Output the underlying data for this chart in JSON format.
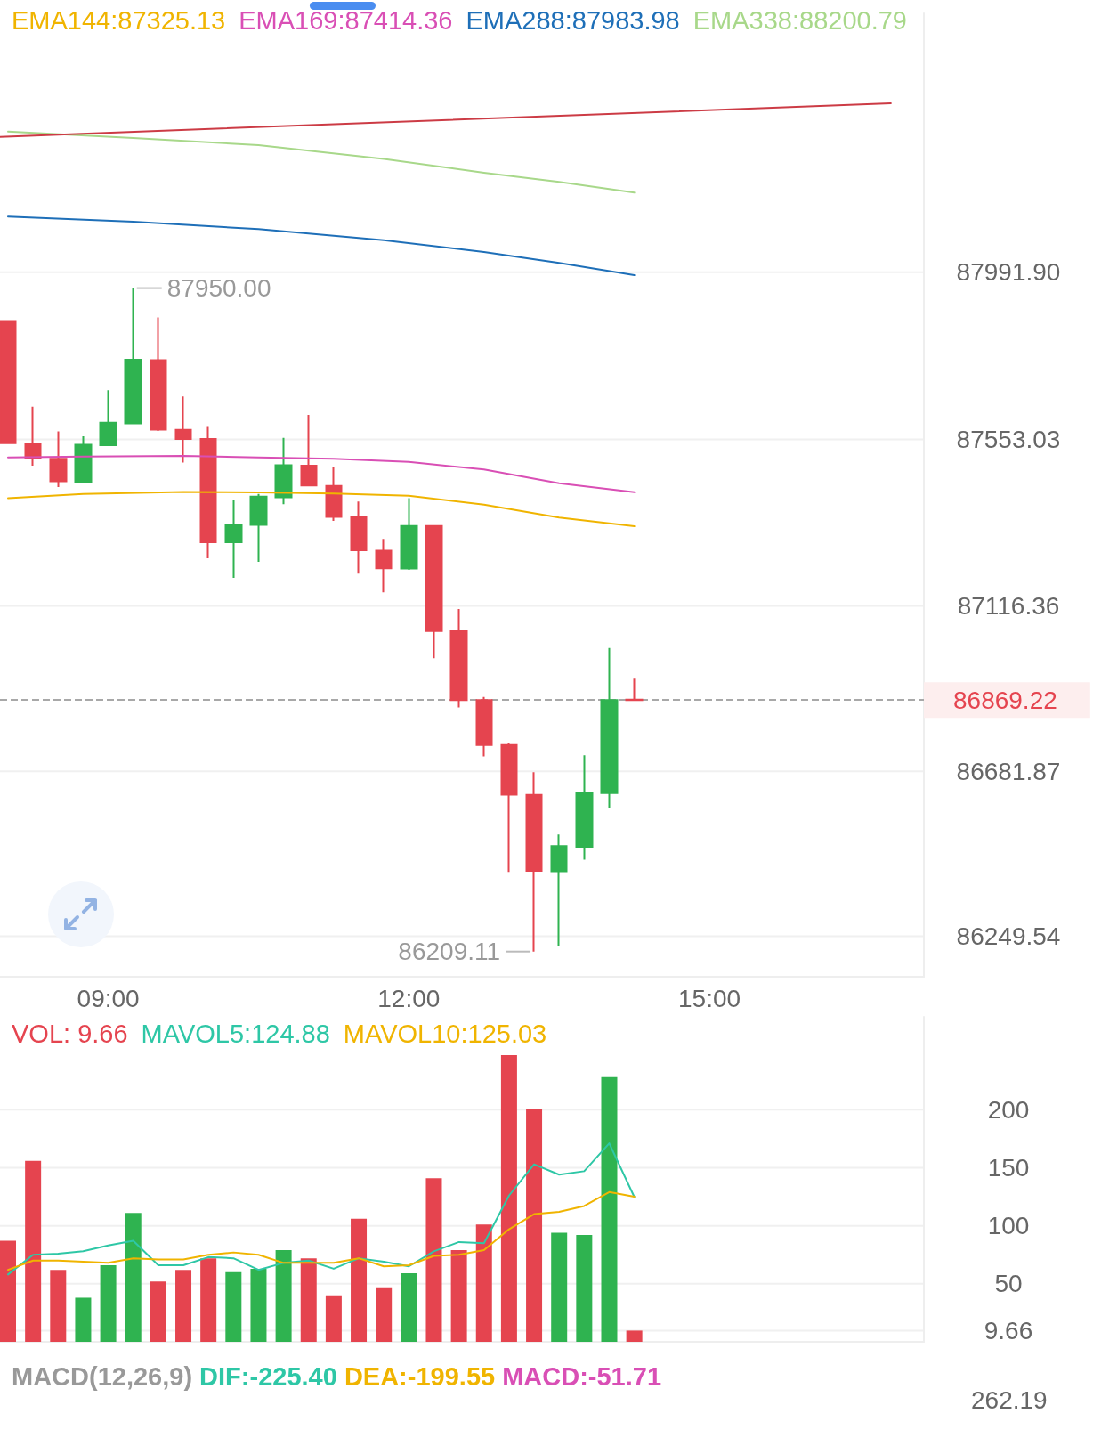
{
  "chart_data": [
    {
      "type": "candlestick",
      "x": [
        8,
        8.25,
        8.5,
        8.75,
        9,
        9.25,
        9.5,
        9.75,
        10,
        10.25,
        10.5,
        10.75,
        11,
        11.25,
        11.5,
        11.75,
        12,
        12.25,
        12.5,
        12.75,
        13,
        13.25,
        13.5,
        13.75,
        14,
        14.25
      ],
      "ohlc": [
        [
          87864,
          87864,
          87543,
          87543
        ],
        [
          87542,
          87639,
          87484,
          87505
        ],
        [
          87502,
          87574,
          87428,
          87443
        ],
        [
          87442,
          87561,
          87442,
          87539
        ],
        [
          87538,
          87682,
          87538,
          87597
        ],
        [
          87595,
          87950.0,
          87595,
          87762
        ],
        [
          87761,
          87873,
          87575,
          87579
        ],
        [
          87578,
          87666,
          87492,
          87554
        ],
        [
          87554,
          87588,
          87241,
          87283
        ],
        [
          87283,
          87393,
          87190,
          87330
        ],
        [
          87329,
          87410,
          87232,
          87403
        ],
        [
          87401,
          87557,
          87383,
          87485
        ],
        [
          87484,
          87617,
          87432,
          87432
        ],
        [
          87431,
          87481,
          87339,
          87350
        ],
        [
          87349,
          87390,
          87201,
          87262
        ],
        [
          87261,
          87292,
          87152,
          87215
        ],
        [
          87214,
          87399,
          87211,
          87326
        ],
        [
          87326,
          87326,
          86979,
          87050
        ],
        [
          87050,
          87108,
          86850,
          86869
        ],
        [
          86869,
          86877,
          86721,
          86751
        ],
        [
          86751,
          86757,
          86418,
          86621
        ],
        [
          86620,
          86680,
          86209.11,
          86421
        ],
        [
          86420,
          86516,
          86225,
          86486
        ],
        [
          86484,
          86724,
          86450,
          86626
        ],
        [
          86625,
          87006,
          86586,
          86869
        ],
        [
          86870,
          86925,
          86869.22,
          86869.22
        ]
      ],
      "colors": [
        "#e5444f",
        "#e5444f",
        "#e5444f",
        "#2fb350",
        "#2fb350",
        "#2fb350",
        "#e5444f",
        "#e5444f",
        "#e5444f",
        "#2fb350",
        "#2fb350",
        "#2fb350",
        "#e5444f",
        "#e5444f",
        "#e5444f",
        "#e5444f",
        "#2fb350",
        "#e5444f",
        "#e5444f",
        "#e5444f",
        "#e5444f",
        "#e5444f",
        "#2fb350",
        "#2fb350",
        "#2fb350",
        "#e5444f"
      ],
      "series": [
        {
          "name": "EMA144:87325.13",
          "type": "line",
          "color": "#f0b400",
          "x": [
            8,
            8.75,
            9.75,
            10.5,
            11.25,
            12,
            12.75,
            13.5,
            14.25
          ],
          "values": [
            87399,
            87410,
            87415,
            87414,
            87411,
            87405,
            87382,
            87348,
            87325.13
          ]
        },
        {
          "name": "EMA169:87414.36",
          "type": "line",
          "color": "#d94fb5",
          "x": [
            8,
            8.75,
            9.75,
            10.5,
            11.25,
            12,
            12.75,
            13.5,
            14.25
          ],
          "values": [
            87506,
            87508,
            87510,
            87506,
            87502,
            87494,
            87474,
            87438,
            87414.36
          ]
        },
        {
          "name": "EMA288:87983.98",
          "type": "line",
          "color": "#1e6fb8",
          "x": [
            8,
            9.25,
            10.5,
            11.75,
            12.75,
            13.5,
            14.25
          ],
          "values": [
            88138,
            88124,
            88105,
            88076,
            88045,
            88016,
            87983.98
          ]
        },
        {
          "name": "EMA338:88200.79",
          "type": "line",
          "color": "#a8d88a",
          "x": [
            8,
            9.25,
            10.5,
            11.75,
            12.75,
            13.5,
            14.25
          ],
          "values": [
            88361,
            88344,
            88325,
            88289,
            88253,
            88229,
            88200.79
          ]
        },
        {
          "type": "line",
          "color": "#cc3b45",
          "x": [
            7.92,
            16.81
          ],
          "values": [
            88347,
            88435
          ]
        }
      ],
      "xlim": [
        7.92,
        17.14
      ],
      "xticks": [
        {
          "value": 9,
          "label": "09:00"
        },
        {
          "value": 12,
          "label": "12:00"
        },
        {
          "value": 15,
          "label": "15:00"
        }
      ],
      "ylim": [
        86143,
        88671
      ],
      "yticks": [
        {
          "value": 86249.54,
          "label": "86249.54"
        },
        {
          "value": 86681.87,
          "label": "86681.87"
        },
        {
          "value": 87116.36,
          "label": "87116.36"
        },
        {
          "value": 87553.03,
          "label": "87553.03"
        },
        {
          "value": 87991.9,
          "label": "87991.90"
        }
      ],
      "grid": "y",
      "legend": "top",
      "ref_lines": [
        {
          "axis": "y",
          "value": 86869.22,
          "label": "86869.22",
          "color": "#a8a8a8",
          "line_style": "dashed"
        }
      ],
      "annotations": [
        {
          "text": "87950.00",
          "x": 9.25,
          "y": 87950.0
        },
        {
          "text": "86209.11",
          "x": 13.25,
          "y": 86209.11
        }
      ]
    },
    {
      "type": "bar",
      "x": [
        8,
        8.25,
        8.5,
        8.75,
        9,
        9.25,
        9.5,
        9.75,
        10,
        10.25,
        10.5,
        10.75,
        11,
        11.25,
        11.5,
        11.75,
        12,
        12.25,
        12.5,
        12.75,
        13,
        13.25,
        13.5,
        13.75,
        14,
        14.25
      ],
      "series": [
        {
          "name": "VOL: 9.66",
          "type": "bar",
          "values": [
            87,
            156,
            62,
            38,
            66,
            111,
            52,
            62,
            72,
            60,
            63,
            79,
            72,
            40,
            106,
            47,
            59,
            141,
            79,
            101,
            247,
            201,
            94,
            92,
            228,
            9.66
          ],
          "colors": [
            "#e5444f",
            "#e5444f",
            "#e5444f",
            "#2fb350",
            "#2fb350",
            "#2fb350",
            "#e5444f",
            "#e5444f",
            "#e5444f",
            "#2fb350",
            "#2fb350",
            "#2fb350",
            "#e5444f",
            "#e5444f",
            "#e5444f",
            "#e5444f",
            "#2fb350",
            "#e5444f",
            "#e5444f",
            "#e5444f",
            "#e5444f",
            "#e5444f",
            "#2fb350",
            "#2fb350",
            "#2fb350",
            "#e5444f"
          ]
        },
        {
          "name": "MAVOL5:124.88",
          "type": "line",
          "color": "#2ec7a6",
          "values": [
            58,
            75,
            76,
            78,
            83,
            87,
            66,
            66,
            73,
            72,
            62,
            68,
            70,
            63,
            72,
            69,
            65,
            78,
            86,
            85,
            126,
            153,
            144,
            147,
            171,
            124.88
          ]
        },
        {
          "name": "MAVOL10:125.03",
          "type": "line",
          "color": "#f0b400",
          "values": [
            62,
            70,
            70,
            69,
            68,
            72,
            71,
            71,
            75,
            77,
            75,
            68,
            68,
            68,
            72,
            65,
            66,
            74,
            75,
            79,
            97,
            110,
            112,
            117,
            129,
            125.03
          ]
        }
      ],
      "xlim": [
        7.92,
        17.14
      ],
      "ylim": [
        0,
        280
      ],
      "yticks": [
        {
          "value": 9.66,
          "label": "9.66"
        },
        50,
        100,
        150,
        200
      ],
      "grid": "y",
      "legend": "top left",
      "tick_labels": "y"
    },
    {
      "type": "other",
      "title": "MACD(12,26,9)",
      "annotations": [
        "DIF:-225.40",
        "DEA:-199.55",
        "MACD:-51.71",
        "262.19"
      ]
    }
  ]
}
